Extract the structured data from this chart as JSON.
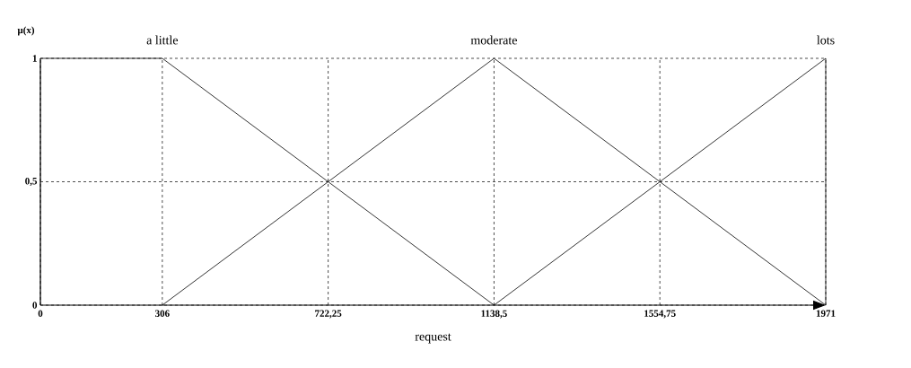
{
  "chart_data": {
    "type": "line",
    "xlabel": "request",
    "ylabel": "μ(x)",
    "series": [
      {
        "name": "a little",
        "color": "#000000",
        "x": [
          0,
          0,
          306,
          1138.5
        ],
        "values": [
          0,
          1,
          1,
          0
        ]
      },
      {
        "name": "moderate",
        "color": "#000000",
        "x": [
          306,
          1138.5,
          1971
        ],
        "values": [
          0,
          1,
          0
        ]
      },
      {
        "name": "lots",
        "color": "#000000",
        "x": [
          1138.5,
          1971,
          1971
        ],
        "values": [
          0,
          1,
          0
        ]
      }
    ],
    "xlim": [
      0,
      1971
    ],
    "ylim": [
      0,
      1
    ],
    "xticks": [
      0,
      306,
      {
        "value": 722.25,
        "label": "722,25"
      },
      {
        "value": 1138.5,
        "label": "1138,5"
      },
      {
        "value": 1554.75,
        "label": "1554,75"
      },
      1971
    ],
    "yticks": [
      0,
      {
        "value": 0.5,
        "label": "0,5"
      },
      1
    ],
    "grid": true,
    "legend": false,
    "marker": "none",
    "line_style": "solid"
  }
}
